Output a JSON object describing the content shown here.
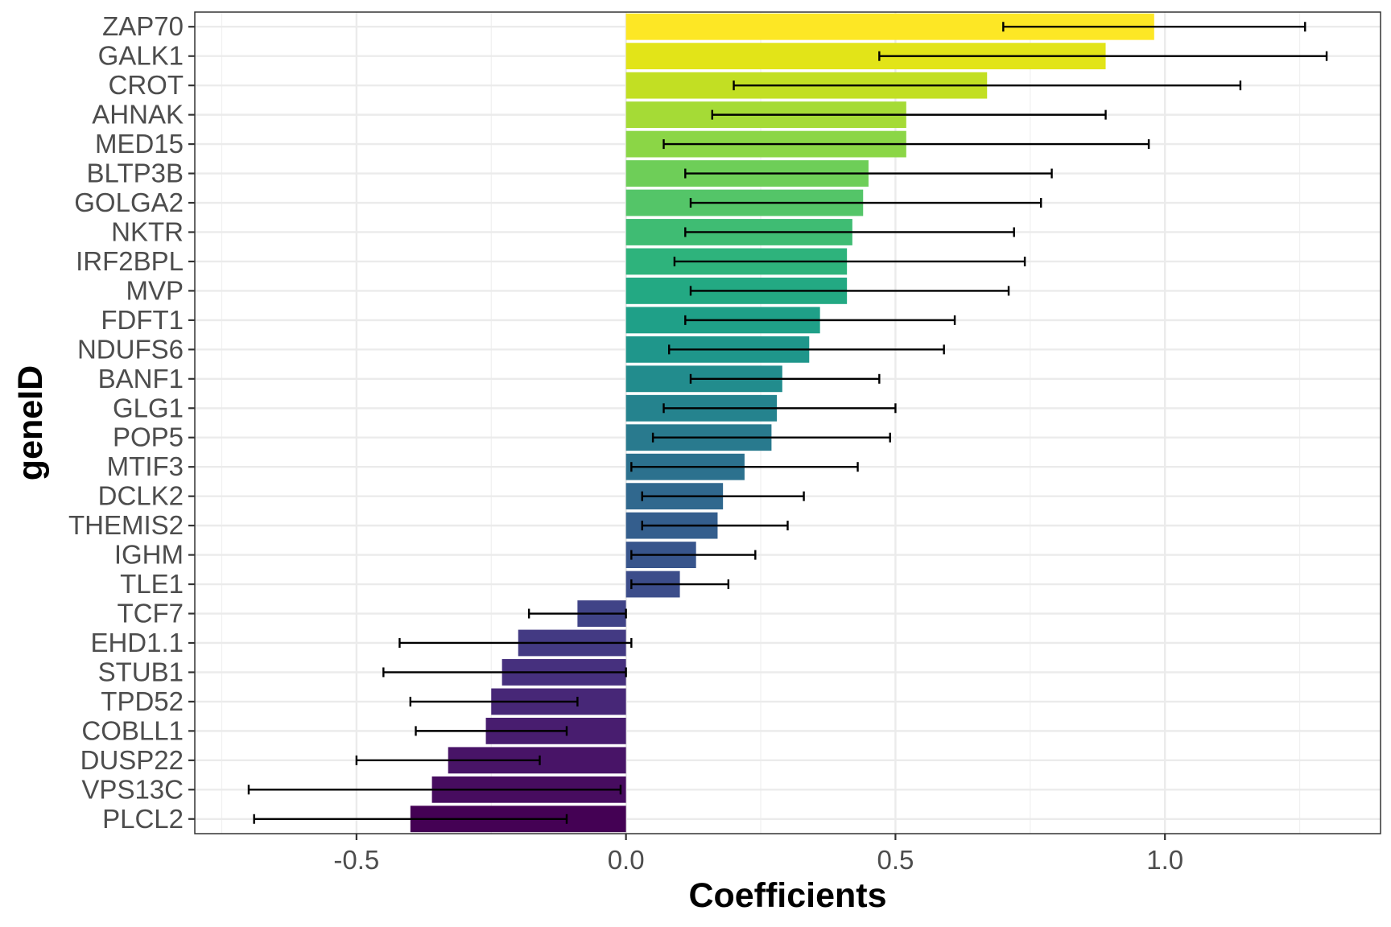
{
  "chart_data": {
    "type": "bar",
    "orientation": "horizontal",
    "xlabel": "Coefficients",
    "ylabel": "geneID",
    "xlim": [
      -0.8,
      1.4
    ],
    "x_ticks": [
      -0.5,
      0.0,
      0.5,
      1.0
    ],
    "x_tick_labels": [
      "-0.5",
      "0.0",
      "0.5",
      "1.0"
    ],
    "grid": true,
    "categories": [
      "ZAP70",
      "GALK1",
      "CROT",
      "AHNAK",
      "MED15",
      "BLTP3B",
      "GOLGA2",
      "NKTR",
      "IRF2BPL",
      "MVP",
      "FDFT1",
      "NDUFS6",
      "BANF1",
      "GLG1",
      "POP5",
      "MTIF3",
      "DCLK2",
      "THEMIS2",
      "IGHM",
      "TLE1",
      "TCF7",
      "EHD1.1",
      "STUB1",
      "TPD52",
      "COBLL1",
      "DUSP22",
      "VPS13C",
      "PLCL2"
    ],
    "values": [
      0.98,
      0.89,
      0.67,
      0.52,
      0.52,
      0.45,
      0.44,
      0.42,
      0.41,
      0.41,
      0.36,
      0.34,
      0.29,
      0.28,
      0.27,
      0.22,
      0.18,
      0.17,
      0.13,
      0.1,
      -0.09,
      -0.2,
      -0.23,
      -0.25,
      -0.26,
      -0.33,
      -0.36,
      -0.4
    ],
    "error_low": [
      0.7,
      0.47,
      0.2,
      0.16,
      0.07,
      0.11,
      0.12,
      0.11,
      0.09,
      0.12,
      0.11,
      0.08,
      0.12,
      0.07,
      0.05,
      0.01,
      0.03,
      0.03,
      0.01,
      0.01,
      -0.18,
      -0.42,
      -0.45,
      -0.4,
      -0.39,
      -0.5,
      -0.7,
      -0.69
    ],
    "error_high": [
      1.26,
      1.3,
      1.14,
      0.89,
      0.97,
      0.79,
      0.77,
      0.72,
      0.74,
      0.71,
      0.61,
      0.59,
      0.47,
      0.5,
      0.49,
      0.43,
      0.33,
      0.3,
      0.24,
      0.19,
      0.0,
      0.01,
      0.0,
      -0.09,
      -0.11,
      -0.16,
      -0.01,
      -0.11
    ],
    "colors": [
      "#fde725",
      "#e2e418",
      "#c2df23",
      "#a5db36",
      "#8bd646",
      "#6ece58",
      "#54c568",
      "#3fbc73",
      "#2eb37c",
      "#23a983",
      "#1fa088",
      "#1f968b",
      "#228c8d",
      "#25838e",
      "#297a8e",
      "#2c718e",
      "#30688e",
      "#345e8d",
      "#38558c",
      "#3c4d8a",
      "#404387",
      "#433a83",
      "#46307e",
      "#472777",
      "#481d6f",
      "#481467",
      "#470c5f",
      "#440154"
    ]
  }
}
